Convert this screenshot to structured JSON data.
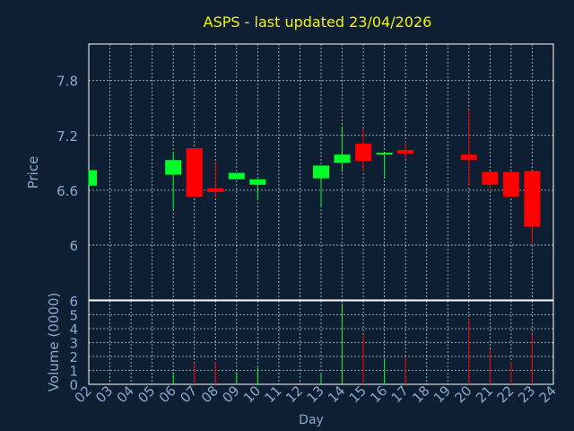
{
  "colors": {
    "background": "#0f1f33",
    "title": "#f2f20a",
    "axis_text": "#87a9cf",
    "frame": "#ffffff",
    "grid": "#ffffff",
    "up": "#00ff2a",
    "down": "#ff0000"
  },
  "chart_data": [
    {
      "type": "candlestick",
      "title": "ASPS - last updated 23/04/2026",
      "ylabel": "Price",
      "ylim": [
        5.4,
        8.2
      ],
      "yticks": [
        "6",
        "6.6",
        "7.2",
        "7.8"
      ],
      "ytick_values": [
        6,
        6.6,
        7.2,
        7.8
      ],
      "grid": true,
      "days": [
        "02",
        "03",
        "04",
        "05",
        "06",
        "07",
        "08",
        "09",
        "10",
        "11",
        "12",
        "13",
        "14",
        "15",
        "16",
        "17",
        "18",
        "19",
        "20",
        "21",
        "22",
        "23",
        "24"
      ],
      "candles": [
        {
          "day": "02",
          "open": 6.65,
          "close": 6.82,
          "high": 6.82,
          "low": 6.65,
          "direction": "up"
        },
        {
          "day": "06",
          "open": 6.77,
          "close": 6.93,
          "high": 7.02,
          "low": 6.39,
          "direction": "up"
        },
        {
          "day": "07",
          "open": 7.06,
          "close": 6.53,
          "high": 7.06,
          "low": 6.53,
          "direction": "down"
        },
        {
          "day": "08",
          "open": 6.62,
          "close": 6.58,
          "high": 6.91,
          "low": 6.52,
          "direction": "down"
        },
        {
          "day": "09",
          "open": 6.72,
          "close": 6.79,
          "high": 6.79,
          "low": 6.72,
          "direction": "up"
        },
        {
          "day": "10",
          "open": 6.66,
          "close": 6.72,
          "high": 6.72,
          "low": 6.49,
          "direction": "up"
        },
        {
          "day": "13",
          "open": 6.73,
          "close": 6.87,
          "high": 6.87,
          "low": 6.41,
          "direction": "up"
        },
        {
          "day": "14",
          "open": 6.9,
          "close": 6.99,
          "high": 7.3,
          "low": 6.8,
          "direction": "up"
        },
        {
          "day": "15",
          "open": 7.11,
          "close": 6.92,
          "high": 7.28,
          "low": 6.8,
          "direction": "down"
        },
        {
          "day": "16",
          "open": 6.99,
          "close": 7.01,
          "high": 7.01,
          "low": 6.74,
          "direction": "up"
        },
        {
          "day": "17",
          "open": 7.04,
          "close": 7.0,
          "high": 7.13,
          "low": 6.94,
          "direction": "down"
        },
        {
          "day": "20",
          "open": 6.99,
          "close": 6.93,
          "high": 7.48,
          "low": 6.65,
          "direction": "down"
        },
        {
          "day": "21",
          "open": 6.8,
          "close": 6.66,
          "high": 6.8,
          "low": 6.61,
          "direction": "down"
        },
        {
          "day": "22",
          "open": 6.8,
          "close": 6.53,
          "high": 6.8,
          "low": 6.53,
          "direction": "down"
        },
        {
          "day": "23",
          "open": 6.81,
          "close": 6.2,
          "high": 6.81,
          "low": 6.01,
          "direction": "down"
        }
      ]
    },
    {
      "type": "bar",
      "ylabel": "Volume (0000)",
      "xlabel": "Day",
      "ylim": [
        0,
        6
      ],
      "yticks": [
        "0",
        "1",
        "2",
        "3",
        "4",
        "5",
        "6"
      ],
      "ytick_values": [
        0,
        1,
        2,
        3,
        4,
        5,
        6
      ],
      "grid": true,
      "days": [
        "02",
        "03",
        "04",
        "05",
        "06",
        "07",
        "08",
        "09",
        "10",
        "11",
        "12",
        "13",
        "14",
        "15",
        "16",
        "17",
        "18",
        "19",
        "20",
        "21",
        "22",
        "23",
        "24"
      ],
      "bars": [
        {
          "day": "06",
          "value": 0.9,
          "direction": "up"
        },
        {
          "day": "07",
          "value": 1.5,
          "direction": "down"
        },
        {
          "day": "08",
          "value": 1.6,
          "direction": "down"
        },
        {
          "day": "09",
          "value": 0.9,
          "direction": "up"
        },
        {
          "day": "10",
          "value": 1.2,
          "direction": "up"
        },
        {
          "day": "13",
          "value": 0.7,
          "direction": "up"
        },
        {
          "day": "14",
          "value": 5.8,
          "direction": "up"
        },
        {
          "day": "15",
          "value": 3.5,
          "direction": "down"
        },
        {
          "day": "16",
          "value": 1.9,
          "direction": "up"
        },
        {
          "day": "17",
          "value": 1.9,
          "direction": "down"
        },
        {
          "day": "20",
          "value": 4.7,
          "direction": "down"
        },
        {
          "day": "21",
          "value": 2.5,
          "direction": "down"
        },
        {
          "day": "22",
          "value": 1.6,
          "direction": "down"
        },
        {
          "day": "23",
          "value": 3.6,
          "direction": "down"
        }
      ]
    }
  ]
}
